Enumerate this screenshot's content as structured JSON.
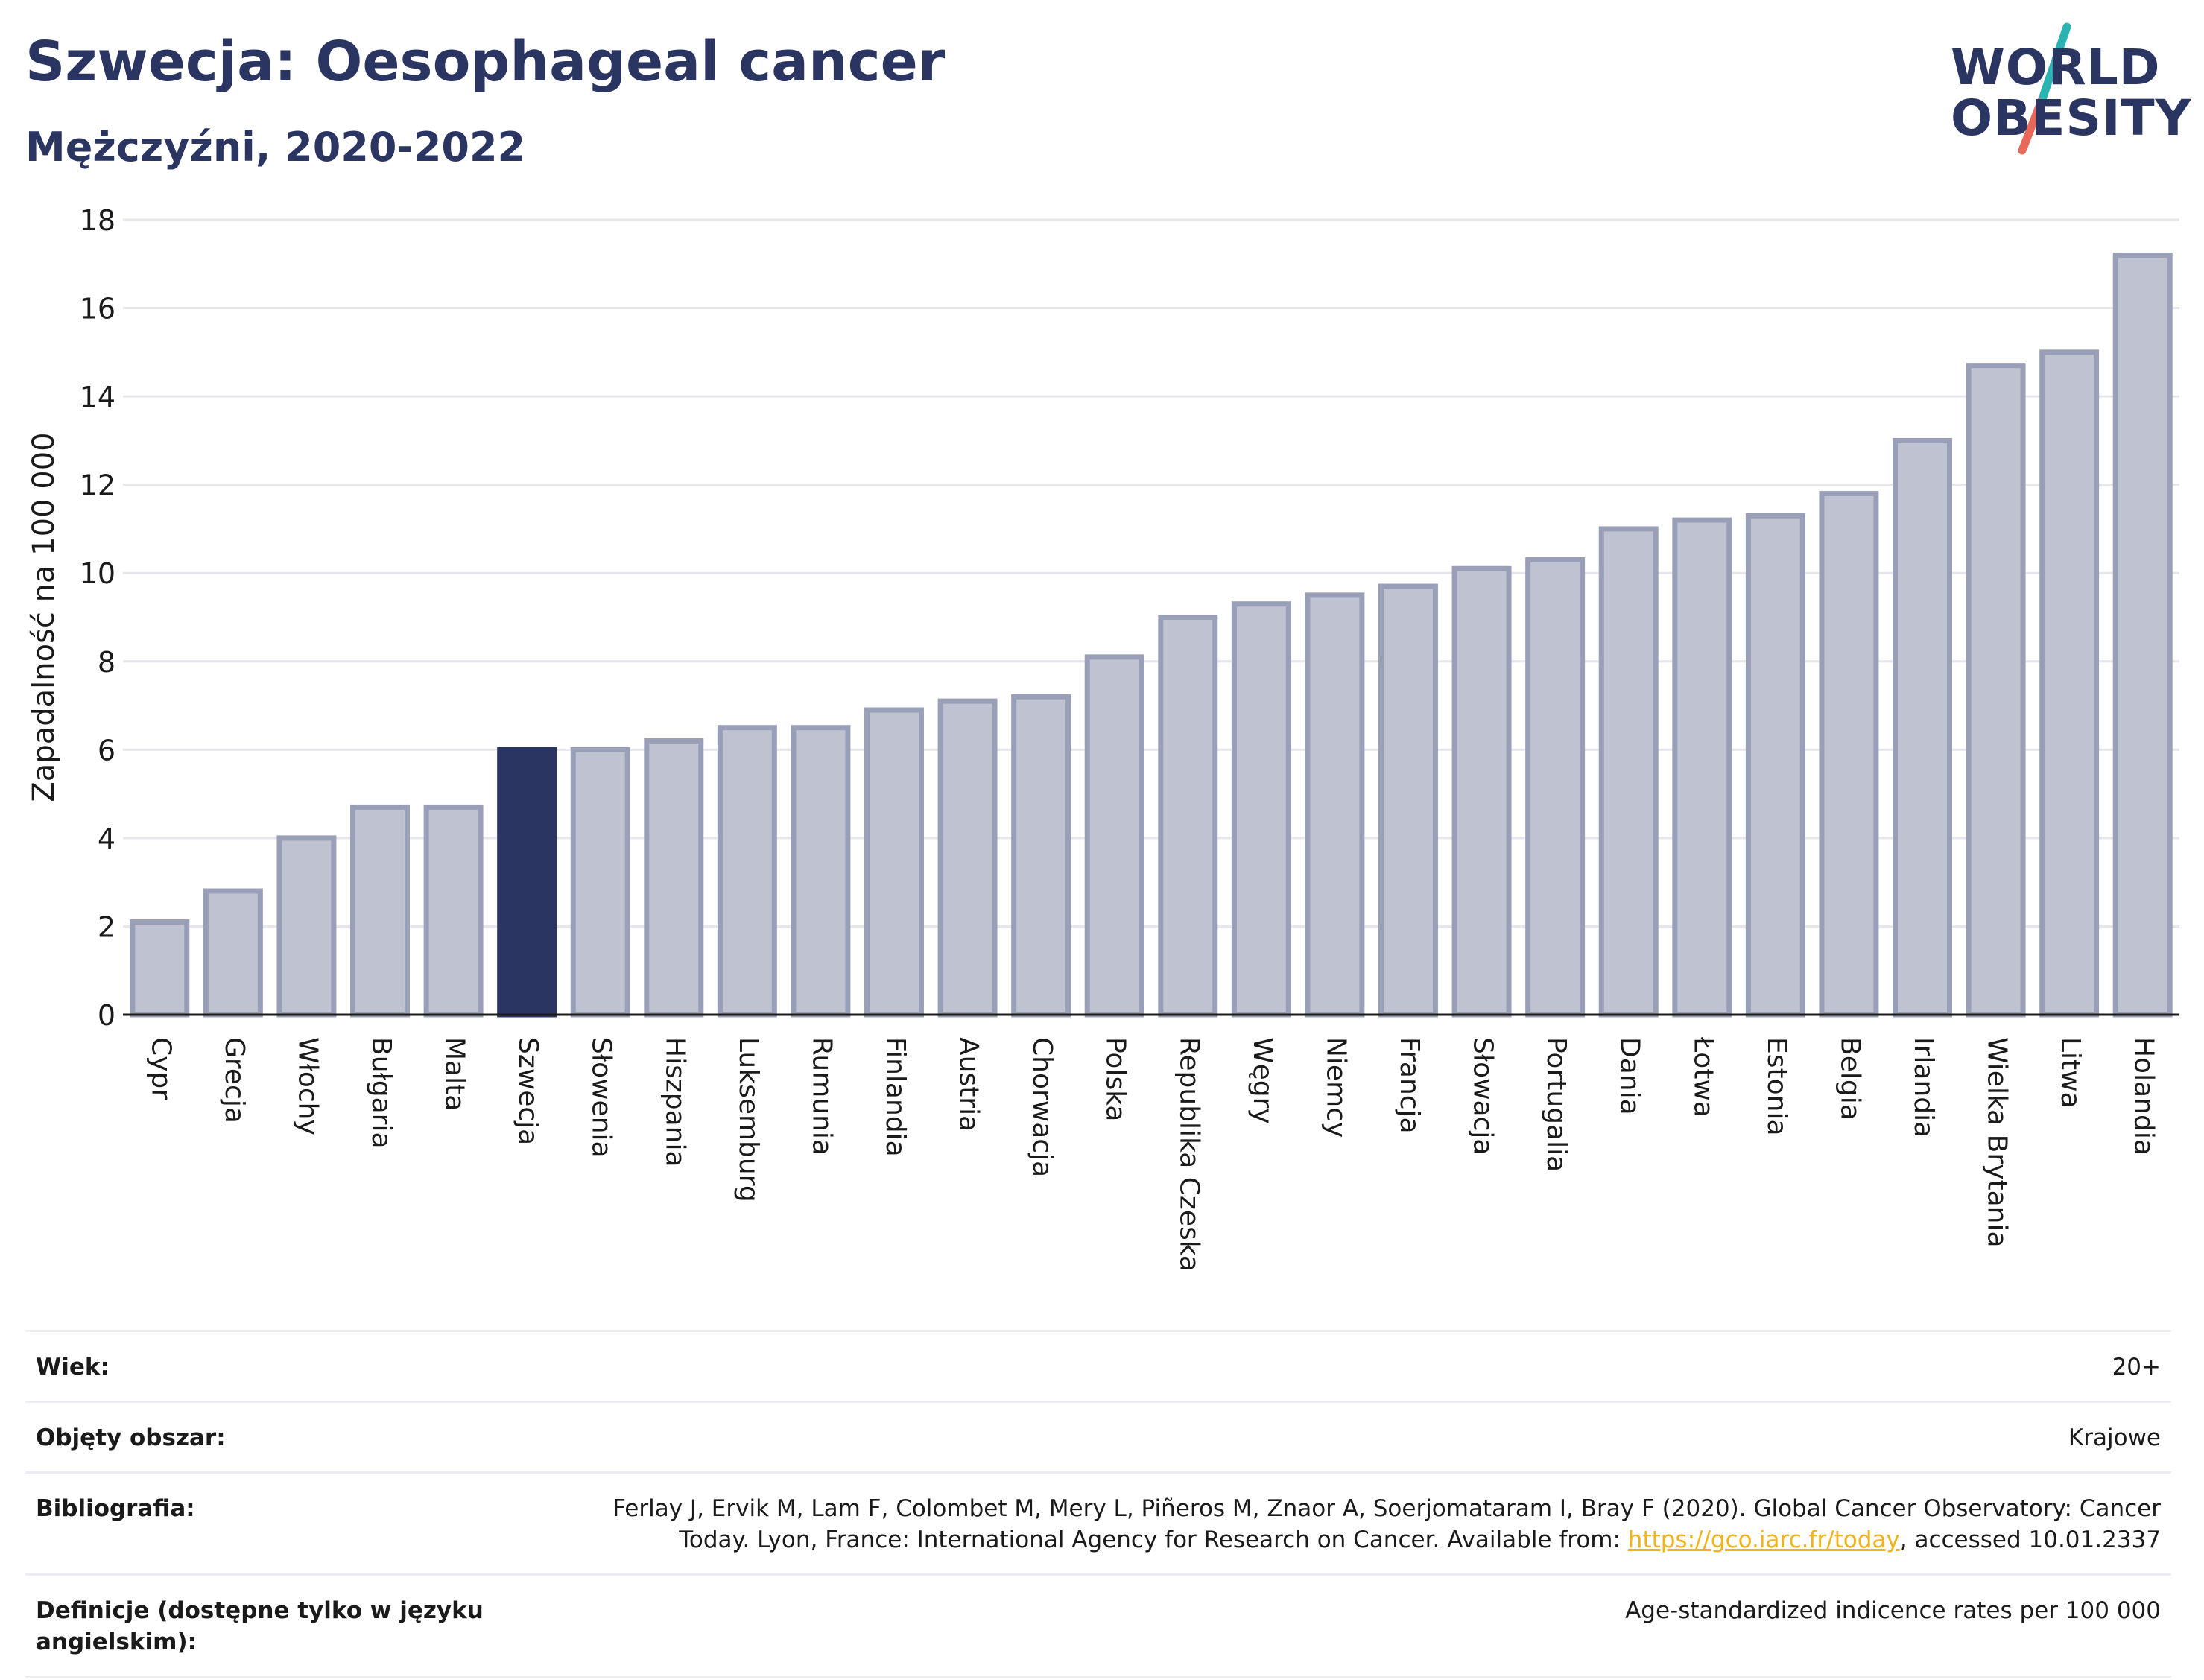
{
  "header": {
    "title": "Szwecja: Oesophageal cancer",
    "subtitle": "Mężczyźni, 2020-2022"
  },
  "logo": {
    "line1": "WORLD",
    "line2": "OBESITY"
  },
  "colors": {
    "highlight": "#2b3561",
    "bar_fill": "#bfc2d0",
    "bar_stroke": "#9a9fb8",
    "grid": "#e6e6ec",
    "logo_teal": "#2ab3b1",
    "logo_coral": "#e8685a"
  },
  "chart_data": {
    "type": "bar",
    "title": "Szwecja: Oesophageal cancer",
    "subtitle": "Mężczyźni, 2020-2022",
    "xlabel": "",
    "ylabel": "Zapadalność na 100 000",
    "ylim": [
      0,
      18
    ],
    "yticks": [
      0,
      2,
      4,
      6,
      8,
      10,
      12,
      14,
      16,
      18
    ],
    "grid": true,
    "highlight": "Szwecja",
    "categories": [
      "Cypr",
      "Grecja",
      "Włochy",
      "Bułgaria",
      "Malta",
      "Szwecja",
      "Słowenia",
      "Hiszpania",
      "Luksemburg",
      "Rumunia",
      "Finlandia",
      "Austria",
      "Chorwacja",
      "Polska",
      "Republika Czeska",
      "Węgry",
      "Niemcy",
      "Francja",
      "Słowacja",
      "Portugalia",
      "Dania",
      "Łotwa",
      "Estonia",
      "Belgia",
      "Irlandia",
      "Wielka Brytania",
      "Litwa",
      "Holandia"
    ],
    "values": [
      2.1,
      2.8,
      4.0,
      4.7,
      4.7,
      6.0,
      6.0,
      6.2,
      6.5,
      6.5,
      6.9,
      7.1,
      7.2,
      8.1,
      9.0,
      9.3,
      9.5,
      9.7,
      10.1,
      10.3,
      11.0,
      11.2,
      11.3,
      11.8,
      13.0,
      14.7,
      15.0,
      17.2
    ]
  },
  "info": {
    "age_label": "Wiek:",
    "age_value": "20+",
    "coverage_label": "Objęty obszar:",
    "coverage_value": "Krajowe",
    "bibliography_label": "Bibliografia:",
    "bibliography_text1": "Ferlay J, Ervik M, Lam F, Colombet M, Mery L, Piñeros M, Znaor A, Soerjomataram I, Bray F (2020). Global Cancer Observatory: Cancer Today. Lyon, France: International Agency for Research on Cancer. Available from: ",
    "bibliography_link": "https://gco.iarc.fr/today",
    "bibliography_text2": ", accessed 10.01.2337",
    "definitions_label": "Definicje (dostępne tylko w języku angielskim):",
    "definitions_value": "Age-standardized indicence rates per 100 000"
  }
}
